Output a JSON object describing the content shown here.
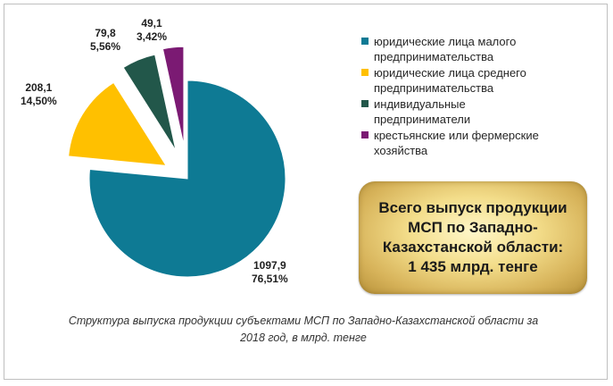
{
  "chart_data": {
    "type": "pie",
    "slices": [
      {
        "label": "юридические лица малого предпринимательства",
        "value": 1097.9,
        "percent": "76,51%",
        "value_text": "1097,9",
        "color": "#0e7a94"
      },
      {
        "label": "юридические лица среднего предпринимательства",
        "value": 208.1,
        "percent": "14,50%",
        "value_text": "208,1",
        "color": "#ffc000"
      },
      {
        "label": "индивидуальные предприниматели",
        "value": 79.8,
        "percent": "5,56%",
        "value_text": "79,8",
        "color": "#22574a"
      },
      {
        "label": "крестьянские или фермерские хозяйства",
        "value": 49.1,
        "percent": "3,42%",
        "value_text": "49,1",
        "color": "#7b1a73"
      }
    ],
    "legend_placement": "right",
    "exploded": true
  },
  "total_box": {
    "lines": [
      "Всего выпуск продукции",
      "МСП по Западно-",
      "Казахстанской области:",
      "1 435 млрд. тенге"
    ]
  },
  "caption": {
    "line1": "Структура выпуска продукции субъектами МСП по Западно-Казахстанской области за",
    "line2": "2018 год, в млрд. тенге"
  },
  "legend_items": [
    {
      "lines": [
        "юридические лица малого",
        "предпринимательства"
      ]
    },
    {
      "lines": [
        "юридические лица среднего",
        "предпринимательства"
      ]
    },
    {
      "lines": [
        "индивидуальные",
        "предприниматели"
      ]
    },
    {
      "lines": [
        "крестьянские или фермерские",
        "хозяйства"
      ]
    }
  ]
}
